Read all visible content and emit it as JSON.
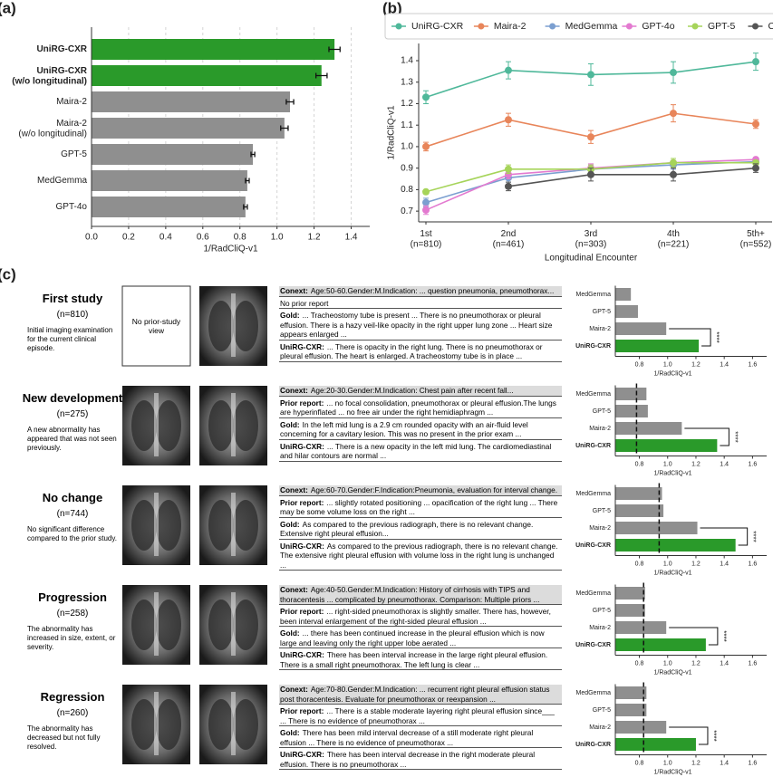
{
  "chart_data": [
    {
      "type": "bar",
      "orientation": "horizontal",
      "panel": "(a)",
      "xlabel": "1/RadCliQ-v1",
      "categories": [
        "UniRG-CXR",
        "UniRG-CXR\n(w/o longitudinal)",
        "Maira-2",
        "Maira-2\n(w/o longitudinal)",
        "GPT-5",
        "MedGemma",
        "GPT-4o"
      ],
      "values": [
        1.31,
        1.24,
        1.07,
        1.04,
        0.87,
        0.84,
        0.83
      ],
      "errors": [
        0.03,
        0.03,
        0.02,
        0.02,
        0.01,
        0.01,
        0.01
      ],
      "colors": [
        "#2a9a2a",
        "#2a9a2a",
        "#8f8f8f",
        "#8f8f8f",
        "#8f8f8f",
        "#8f8f8f",
        "#8f8f8f"
      ],
      "bold": [
        true,
        true,
        false,
        false,
        false,
        false,
        false
      ],
      "xlim": [
        0,
        1.5
      ],
      "xticks": [
        {
          "value": 0,
          "label": "0.0"
        },
        0.2,
        0.4,
        0.6,
        0.8,
        {
          "value": 1,
          "label": "1.0"
        },
        1.2,
        1.4
      ],
      "grid": true
    },
    {
      "type": "line",
      "panel": "(b)",
      "xlabel": "Longitudinal Encounter",
      "ylabel": "1/RadCliQ-v1",
      "categories": [
        "1st\n(n=810)",
        "2nd\n(n=461)",
        "3rd\n(n=303)",
        "4th\n(n=221)",
        "5th+\n(n=552)"
      ],
      "series": [
        {
          "name": "UniRG-CXR",
          "color": "#4fb89a",
          "values": [
            1.23,
            1.355,
            1.335,
            1.345,
            1.395
          ],
          "errors": [
            0.03,
            0.04,
            0.05,
            0.05,
            0.04
          ]
        },
        {
          "name": "Maira-2",
          "color": "#e8855a",
          "values": [
            1.0,
            1.125,
            1.045,
            1.155,
            1.105
          ],
          "errors": [
            0.02,
            0.03,
            0.03,
            0.04,
            0.02
          ]
        },
        {
          "name": "MedGemma",
          "color": "#7b9fd0",
          "values": [
            0.74,
            0.855,
            0.895,
            0.915,
            0.93
          ],
          "errors": [
            0.02,
            0.02,
            0.02,
            0.02,
            0.01
          ]
        },
        {
          "name": "GPT-4o",
          "color": "#e37ad0",
          "values": [
            0.705,
            0.87,
            0.9,
            0.925,
            0.94
          ],
          "errors": [
            0.02,
            0.02,
            0.02,
            0.02,
            0.01
          ]
        },
        {
          "name": "GPT-5",
          "color": "#a6d45a",
          "values": [
            0.79,
            0.895,
            0.895,
            0.925,
            0.925
          ],
          "errors": [
            0.01,
            0.02,
            0.02,
            0.02,
            0.01
          ]
        },
        {
          "name": "Copy Prior",
          "color": "#555555",
          "values": [
            null,
            0.815,
            0.87,
            0.87,
            0.9
          ],
          "errors": [
            null,
            0.02,
            0.03,
            0.03,
            0.02
          ]
        }
      ],
      "ylim": [
        0.65,
        1.48
      ],
      "yticks": [
        0.7,
        0.8,
        0.9,
        {
          "value": 1,
          "label": "1.0"
        },
        1.1,
        1.2,
        1.3,
        1.4
      ]
    },
    {
      "type": "bar",
      "orientation": "horizontal",
      "xlabel": "1/RadCliQ-v1",
      "categories": [
        "MedGemma",
        "GPT-5",
        "Maira-2",
        "UniRG-CXR"
      ],
      "values": [
        0.74,
        0.79,
        0.99,
        1.22
      ],
      "colors": [
        "#8f8f8f",
        "#8f8f8f",
        "#8f8f8f",
        "#2a9a2a"
      ],
      "bold": [
        false,
        false,
        false,
        true
      ],
      "annotation": "****",
      "xlim": [
        0.63,
        1.7
      ],
      "xticks": [
        0.8,
        {
          "value": 1,
          "label": "1.0"
        },
        1.2,
        1.4,
        1.6
      ]
    },
    {
      "type": "bar",
      "orientation": "horizontal",
      "xlabel": "1/RadCliQ-v1",
      "categories": [
        "MedGemma",
        "GPT-5",
        "Maira-2",
        "UniRG-CXR"
      ],
      "values": [
        0.85,
        0.86,
        1.1,
        1.35
      ],
      "colors": [
        "#8f8f8f",
        "#8f8f8f",
        "#8f8f8f",
        "#2a9a2a"
      ],
      "bold": [
        false,
        false,
        false,
        true
      ],
      "reference_line": 0.78,
      "annotation": "****",
      "xlim": [
        0.63,
        1.7
      ],
      "xticks": [
        0.8,
        {
          "value": 1,
          "label": "1.0"
        },
        1.2,
        1.4,
        1.6
      ]
    },
    {
      "type": "bar",
      "orientation": "horizontal",
      "xlabel": "1/RadCliQ-v1",
      "categories": [
        "MedGemma",
        "GPT-5",
        "Maira-2",
        "UniRG-CXR"
      ],
      "values": [
        0.96,
        0.97,
        1.21,
        1.48
      ],
      "colors": [
        "#8f8f8f",
        "#8f8f8f",
        "#8f8f8f",
        "#2a9a2a"
      ],
      "bold": [
        false,
        false,
        false,
        true
      ],
      "reference_line": 0.94,
      "annotation": "****",
      "xlim": [
        0.63,
        1.7
      ],
      "xticks": [
        0.8,
        {
          "value": 1,
          "label": "1.0"
        },
        1.2,
        1.4,
        1.6
      ]
    },
    {
      "type": "bar",
      "orientation": "horizontal",
      "xlabel": "1/RadCliQ-v1",
      "categories": [
        "MedGemma",
        "GPT-5",
        "Maira-2",
        "UniRG-CXR"
      ],
      "values": [
        0.84,
        0.84,
        0.99,
        1.27
      ],
      "colors": [
        "#8f8f8f",
        "#8f8f8f",
        "#8f8f8f",
        "#2a9a2a"
      ],
      "bold": [
        false,
        false,
        false,
        true
      ],
      "reference_line": 0.83,
      "annotation": "****",
      "xlim": [
        0.63,
        1.7
      ],
      "xticks": [
        0.8,
        {
          "value": 1,
          "label": "1.0"
        },
        1.2,
        1.4,
        1.6
      ]
    },
    {
      "type": "bar",
      "orientation": "horizontal",
      "xlabel": "1/RadCliQ-v1",
      "categories": [
        "MedGemma",
        "GPT-5",
        "Maira-2",
        "UniRG-CXR"
      ],
      "values": [
        0.85,
        0.85,
        0.99,
        1.2
      ],
      "colors": [
        "#8f8f8f",
        "#8f8f8f",
        "#8f8f8f",
        "#2a9a2a"
      ],
      "bold": [
        false,
        false,
        false,
        true
      ],
      "reference_line": 0.83,
      "annotation": "****",
      "xlim": [
        0.63,
        1.7
      ],
      "xticks": [
        0.8,
        {
          "value": 1,
          "label": "1.0"
        },
        1.2,
        1.4,
        1.6
      ]
    }
  ],
  "panel_c": {
    "label": "(c)",
    "rows": [
      {
        "title": "First study",
        "n": "(n=810)",
        "description": "Initial imaging examination for the current clinical episode.",
        "prior_view": "No prior-study view",
        "context": {
          "label": "Conext:",
          "text": "Age:50-60.Gender:M.Indication: ... question pneumonia, pneumothorax..."
        },
        "prior_report": {
          "text": "No prior report"
        },
        "gold": {
          "label": "Gold:",
          "text": "... Tracheostomy tube is present ... There is no pneumothorax or pleural effusion. There is a hazy veil-like opacity in the right upper lung zone ... Heart size appears enlarged ..."
        },
        "prediction": {
          "label": "UniRG-CXR:",
          "text": "... There is opacity in the right lung. There is no pneumothorax or pleural effusion. The heart is enlarged. A tracheostomy tube is in place ..."
        }
      },
      {
        "title": "New development",
        "n": "(n=275)",
        "description": "A new abnormality has appeared that was not seen previously.",
        "context": {
          "label": "Conext:",
          "text": "Age:20-30.Gender:M.Indication: Chest pain after recent fall..."
        },
        "prior_report": {
          "label": "Prior report:",
          "text": "... no focal consolidation, pneumothorax or pleural effusion.The lungs are hyperinflated ... no free air under the right hemidiaphragm ..."
        },
        "gold": {
          "label": "Gold:",
          "text": "In the left mid lung is a 2.9 cm rounded opacity with an air-fluid level concerning for a cavitary lesion. This was no present in the prior exam ..."
        },
        "prediction": {
          "label": "UniRG-CXR:",
          "text": "... There is a new opacity in the left mid lung. The cardiomediastinal and hilar contours are normal ..."
        }
      },
      {
        "title": "No change",
        "n": "(n=744)",
        "description": "No significant difference compared to the prior study.",
        "context": {
          "label": "Conext:",
          "text": "Age:60-70.Gender:F.Indication:Pneumonia, evaluation for interval change."
        },
        "prior_report": {
          "label": "Prior report:",
          "text": "... slightly rotated positioning ... opacification of the right lung ... There may be some volume loss on the right ..."
        },
        "gold": {
          "label": "Gold:",
          "text": "As compared to the previous radiograph, there is no relevant change. Extensive right pleural effusion..."
        },
        "prediction": {
          "label": "UniRG-CXR:",
          "text": "As compared to the previous radiograph, there is no relevant change. The extensive right pleural effusion with volume loss in the right lung is unchanged ..."
        }
      },
      {
        "title": "Progression",
        "n": "(n=258)",
        "description": "The abnormality has increased in size, extent, or severity.",
        "context": {
          "label": "Conext:",
          "text": "Age:40-50.Gender:M.Indication: History of cirrhosis with TIPS and thoracentesis ... complicated by pneumothorax. Comparison: Multiple priors ..."
        },
        "prior_report": {
          "label": "Prior report:",
          "text": "... right-sided pneumothorax is slightly smaller. There has, however, been interval enlargement of the right-sided pleural effusion ..."
        },
        "gold": {
          "label": "Gold:",
          "text": "... there has been continued increase in the pleural effusion which is now large and leaving only the right upper lobe aerated ..."
        },
        "prediction": {
          "label": "UniRG-CXR:",
          "text": "There has been interval increase in the large right pleural effusion. There is a small right pneumothorax. The left lung is clear ..."
        }
      },
      {
        "title": "Regression",
        "n": "(n=260)",
        "description": "The abnormality has decreased but not fully resolved.",
        "context": {
          "label": "Conext:",
          "text": "Age:70-80.Gender:M.Indication: ... recurrent right pleural effusion status post thoracentesis. Evaluate for pneumothorax or reexpansion ..."
        },
        "prior_report": {
          "label": "Prior report:",
          "text": "... There is a stable moderate layering right pleural effusion since___ ... There is no evidence of pneumothorax ..."
        },
        "gold": {
          "label": "Gold:",
          "text": "There has been mild interval decrease of a still moderate right pleural effusion ... There is no evidence of pneumothorax ..."
        },
        "prediction": {
          "label": "UniRG-CXR:",
          "text": "There has been interval decrease in the right moderate pleural effusion. There is no pneumothorax ..."
        }
      }
    ]
  }
}
